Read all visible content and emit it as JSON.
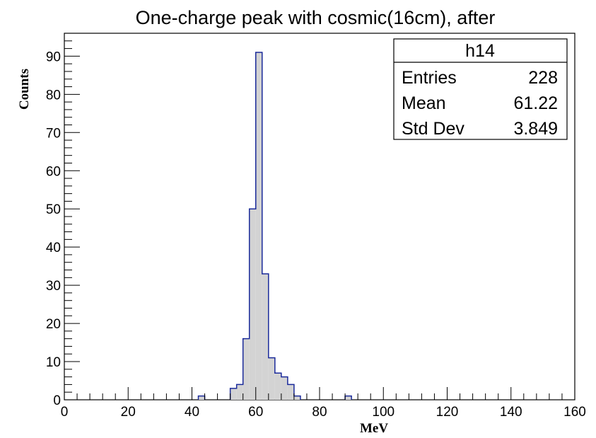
{
  "chart_data": {
    "type": "histogram",
    "title": "One-charge peak with cosmic(16cm), after",
    "xlabel": "MeV",
    "ylabel": "Counts",
    "xlim": [
      0,
      160
    ],
    "ylim": [
      0,
      96
    ],
    "bin_width": 2,
    "x_ticks": [
      "0",
      "20",
      "40",
      "60",
      "80",
      "100",
      "120",
      "140",
      "160"
    ],
    "y_ticks": [
      "0",
      "10",
      "20",
      "30",
      "40",
      "50",
      "60",
      "70",
      "80",
      "90"
    ],
    "bins": [
      {
        "x": 42,
        "count": 1
      },
      {
        "x": 52,
        "count": 3
      },
      {
        "x": 54,
        "count": 4
      },
      {
        "x": 56,
        "count": 16
      },
      {
        "x": 58,
        "count": 50
      },
      {
        "x": 60,
        "count": 91
      },
      {
        "x": 62,
        "count": 33
      },
      {
        "x": 64,
        "count": 11
      },
      {
        "x": 66,
        "count": 7
      },
      {
        "x": 68,
        "count": 6
      },
      {
        "x": 70,
        "count": 4
      },
      {
        "x": 72,
        "count": 1
      },
      {
        "x": 88,
        "count": 1
      }
    ],
    "fill_color": "#d3d3d3",
    "line_color": "#1a2a9a",
    "stats_box": {
      "name": "h14",
      "rows": [
        {
          "label": "Entries",
          "value": "228"
        },
        {
          "label": "Mean",
          "value": "61.22"
        },
        {
          "label": "Std Dev",
          "value": "3.849"
        }
      ]
    }
  }
}
